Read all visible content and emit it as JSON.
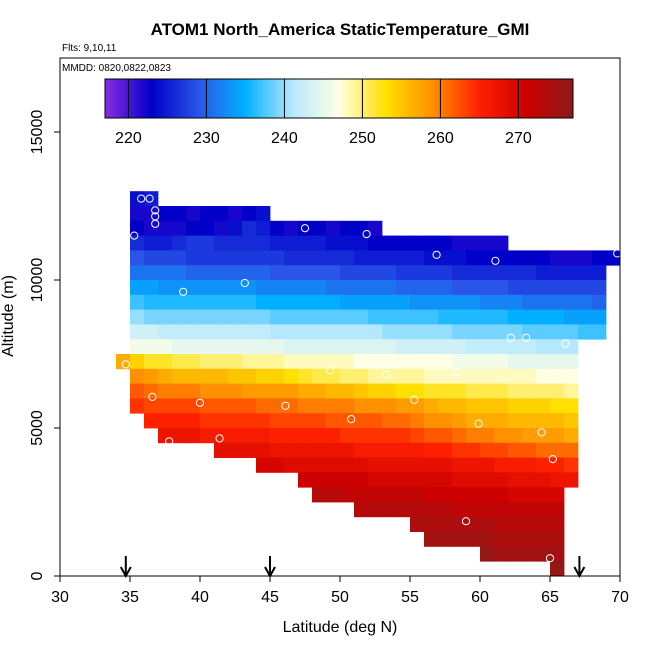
{
  "chart_data": {
    "type": "heatmap",
    "title": "ATOM1 North_America StaticTemperature_GMI",
    "subtitle_flights": "Flts: 9,10,11",
    "subtitle_dates": "MMDD: 0820,0822,0823",
    "xlabel": "Latitude (deg N)",
    "ylabel": "Altitude (m)",
    "xlim": [
      30,
      70
    ],
    "ylim": [
      0,
      17500
    ],
    "x_ticks": [
      30,
      35,
      40,
      45,
      50,
      55,
      60,
      65,
      70
    ],
    "y_ticks": [
      0,
      5000,
      10000,
      15000
    ],
    "colorbar": {
      "range": [
        217,
        277
      ],
      "ticks": [
        220,
        230,
        240,
        250,
        260,
        270
      ],
      "colors": [
        "#8a2be2",
        "#0000c8",
        "#2a55e8",
        "#00b0ff",
        "#b5e8ff",
        "#ffffe5",
        "#ffe000",
        "#ff9000",
        "#ff2000",
        "#cc0000",
        "#8b1a1a"
      ]
    },
    "cell_size": {
      "dlat": 1,
      "dalt": 500
    },
    "layers": [
      {
        "alt": 12750,
        "lat_start": 35,
        "lat_end": 37,
        "values": [
          224,
          225
        ]
      },
      {
        "alt": 12250,
        "lat_start": 35,
        "lat_end": 45,
        "values": [
          222,
          222,
          223,
          223,
          222,
          223,
          223,
          222,
          223,
          224
        ]
      },
      {
        "alt": 11750,
        "lat_start": 35,
        "lat_end": 53,
        "values": [
          223,
          222,
          222,
          222,
          223,
          223,
          222,
          224,
          226,
          225,
          223,
          222,
          223,
          223,
          222,
          223,
          223,
          222
        ]
      },
      {
        "alt": 11250,
        "lat_start": 35,
        "lat_end": 62,
        "values": [
          226,
          225,
          225,
          226,
          227,
          227,
          226,
          226,
          226,
          226,
          225,
          225,
          225,
          225,
          224,
          224,
          224,
          223,
          223,
          223,
          223,
          223,
          223,
          222,
          222,
          222,
          222
        ]
      },
      {
        "alt": 10750,
        "lat_start": 35,
        "lat_end": 70,
        "values": [
          229,
          228,
          228,
          228,
          227,
          227,
          227,
          227,
          227,
          227,
          227,
          226,
          226,
          226,
          226,
          226,
          225,
          225,
          225,
          225,
          225,
          224,
          224,
          224,
          223,
          223,
          223,
          223,
          223,
          223,
          222,
          222,
          222,
          223,
          223
        ]
      },
      {
        "alt": 10250,
        "lat_start": 35,
        "lat_end": 69,
        "values": [
          231,
          231,
          231,
          231,
          230,
          230,
          230,
          230,
          230,
          230,
          229,
          229,
          229,
          229,
          229,
          228,
          228,
          228,
          228,
          227,
          227,
          227,
          227,
          226,
          226,
          226,
          226,
          226,
          226,
          225,
          225,
          225,
          225,
          225
        ]
      },
      {
        "alt": 9750,
        "lat_start": 35,
        "lat_end": 69,
        "values": [
          234,
          234,
          233,
          233,
          233,
          233,
          233,
          233,
          233,
          232,
          232,
          232,
          232,
          232,
          231,
          231,
          231,
          231,
          231,
          230,
          230,
          230,
          230,
          229,
          229,
          229,
          229,
          228,
          228,
          228,
          228,
          228,
          228,
          228
        ]
      },
      {
        "alt": 9250,
        "lat_start": 35,
        "lat_end": 69,
        "values": [
          237,
          236,
          236,
          236,
          236,
          236,
          236,
          236,
          236,
          235,
          235,
          235,
          235,
          235,
          235,
          234,
          234,
          234,
          234,
          234,
          233,
          233,
          233,
          233,
          233,
          232,
          232,
          232,
          231,
          231,
          231,
          231,
          231,
          230
        ]
      },
      {
        "alt": 8750,
        "lat_start": 35,
        "lat_end": 69,
        "values": [
          240,
          239,
          239,
          239,
          239,
          239,
          239,
          239,
          239,
          239,
          238,
          238,
          238,
          238,
          238,
          238,
          238,
          237,
          237,
          237,
          237,
          237,
          236,
          236,
          236,
          236,
          236,
          235,
          235,
          235,
          235,
          234,
          234,
          234
        ]
      },
      {
        "alt": 8250,
        "lat_start": 35,
        "lat_end": 69,
        "values": [
          243,
          243,
          242,
          242,
          242,
          242,
          242,
          242,
          242,
          242,
          241,
          241,
          241,
          241,
          241,
          241,
          241,
          241,
          240,
          240,
          240,
          240,
          240,
          239,
          239,
          239,
          239,
          239,
          238,
          238,
          238,
          238,
          237,
          237
        ]
      },
      {
        "alt": 7750,
        "lat_start": 35,
        "lat_end": 67,
        "values": [
          246,
          246,
          246,
          245,
          245,
          245,
          245,
          245,
          245,
          245,
          245,
          244,
          244,
          244,
          244,
          244,
          244,
          244,
          244,
          243,
          243,
          243,
          243,
          243,
          242,
          242,
          242,
          242,
          242,
          241,
          241,
          241
        ]
      },
      {
        "alt": 7250,
        "lat_start": 34,
        "lat_end": 67,
        "values": [
          257,
          254,
          252,
          252,
          251,
          251,
          250,
          250,
          250,
          249,
          249,
          249,
          248,
          248,
          248,
          248,
          248,
          247,
          247,
          247,
          247,
          247,
          247,
          247,
          246,
          246,
          246,
          246,
          245,
          245,
          245,
          245,
          245
        ]
      },
      {
        "alt": 6750,
        "lat_start": 35,
        "lat_end": 67,
        "values": [
          259,
          258,
          257,
          256,
          256,
          256,
          256,
          255,
          255,
          254,
          254,
          253,
          252,
          251,
          251,
          250,
          250,
          249,
          249,
          249,
          249,
          248,
          248,
          248,
          248,
          248,
          248,
          248,
          248,
          247,
          247,
          247
        ]
      },
      {
        "alt": 6250,
        "lat_start": 35,
        "lat_end": 67,
        "values": [
          262,
          261,
          260,
          260,
          260,
          259,
          259,
          259,
          258,
          258,
          258,
          258,
          257,
          257,
          256,
          256,
          255,
          254,
          254,
          253,
          253,
          252,
          252,
          252,
          251,
          251,
          251,
          250,
          250,
          250,
          250,
          249
        ]
      },
      {
        "alt": 5750,
        "lat_start": 35,
        "lat_end": 67,
        "values": [
          264,
          263,
          263,
          263,
          263,
          262,
          262,
          262,
          262,
          261,
          261,
          261,
          260,
          260,
          260,
          260,
          259,
          259,
          259,
          258,
          258,
          257,
          256,
          256,
          255,
          255,
          255,
          254,
          254,
          254,
          253,
          253
        ]
      },
      {
        "alt": 5250,
        "lat_start": 36,
        "lat_end": 67,
        "values": [
          265,
          265,
          265,
          265,
          264,
          264,
          264,
          264,
          264,
          263,
          263,
          263,
          263,
          262,
          262,
          262,
          262,
          261,
          261,
          260,
          259,
          259,
          258,
          257,
          257,
          257,
          256,
          256,
          256,
          256,
          255
        ]
      },
      {
        "alt": 4750,
        "lat_start": 37,
        "lat_end": 67,
        "values": [
          267,
          267,
          267,
          266,
          266,
          266,
          266,
          266,
          265,
          265,
          265,
          265,
          265,
          264,
          264,
          264,
          264,
          264,
          263,
          262,
          262,
          261,
          260,
          260,
          259,
          259,
          258,
          258,
          258,
          257
        ]
      },
      {
        "alt": 4250,
        "lat_start": 41,
        "lat_end": 67,
        "values": [
          268,
          268,
          268,
          268,
          267,
          267,
          267,
          267,
          267,
          267,
          266,
          266,
          266,
          266,
          266,
          265,
          265,
          264,
          264,
          263,
          263,
          262,
          262,
          261,
          261,
          261
        ]
      },
      {
        "alt": 3750,
        "lat_start": 44,
        "lat_end": 67,
        "values": [
          270,
          270,
          269,
          269,
          269,
          269,
          269,
          269,
          268,
          268,
          268,
          268,
          268,
          268,
          267,
          267,
          267,
          266,
          266,
          266,
          265,
          265,
          264
        ]
      },
      {
        "alt": 3250,
        "lat_start": 47,
        "lat_end": 67,
        "values": [
          271,
          271,
          271,
          271,
          271,
          270,
          270,
          270,
          270,
          270,
          270,
          269,
          269,
          269,
          269,
          268,
          268,
          268,
          267,
          267
        ]
      },
      {
        "alt": 2750,
        "lat_start": 48,
        "lat_end": 66,
        "values": [
          273,
          273,
          272,
          272,
          272,
          272,
          272,
          272,
          271,
          271,
          271,
          271,
          271,
          271,
          270,
          270,
          270,
          270
        ]
      },
      {
        "alt": 2250,
        "lat_start": 51,
        "lat_end": 66,
        "values": [
          273,
          273,
          273,
          273,
          273,
          273,
          273,
          272,
          272,
          272,
          272,
          272,
          272,
          272,
          272
        ]
      },
      {
        "alt": 1750,
        "lat_start": 55,
        "lat_end": 66,
        "values": [
          274,
          274,
          274,
          274,
          274,
          274,
          273,
          273,
          273,
          273,
          273
        ]
      },
      {
        "alt": 1250,
        "lat_start": 56,
        "lat_end": 66,
        "values": [
          275,
          275,
          275,
          275,
          275,
          274,
          274,
          274,
          274,
          274
        ]
      },
      {
        "alt": 750,
        "lat_start": 60,
        "lat_end": 66,
        "values": [
          276,
          275,
          275,
          275,
          275,
          275
        ]
      },
      {
        "alt": 250,
        "lat_start": 65,
        "lat_end": 66,
        "values": [
          276
        ]
      }
    ],
    "sample_points": [
      [
        35.8,
        12750
      ],
      [
        36.4,
        12750
      ],
      [
        36.8,
        12350
      ],
      [
        36.8,
        12150
      ],
      [
        36.8,
        11900
      ],
      [
        35.3,
        11500
      ],
      [
        47.5,
        11750
      ],
      [
        51.9,
        11550
      ],
      [
        56.9,
        10850
      ],
      [
        61.1,
        10650
      ],
      [
        69.8,
        10900
      ],
      [
        38.8,
        9600
      ],
      [
        43.2,
        9900
      ],
      [
        62.2,
        8050
      ],
      [
        63.3,
        8050
      ],
      [
        66.1,
        7850
      ],
      [
        34.7,
        7150
      ],
      [
        49.3,
        6950
      ],
      [
        53.3,
        6800
      ],
      [
        58.3,
        6900
      ],
      [
        36.6,
        6050
      ],
      [
        40.0,
        5850
      ],
      [
        46.1,
        5750
      ],
      [
        55.3,
        5950
      ],
      [
        50.8,
        5300
      ],
      [
        59.9,
        5150
      ],
      [
        64.4,
        4850
      ],
      [
        37.8,
        4550
      ],
      [
        41.4,
        4650
      ],
      [
        65.2,
        3950
      ],
      [
        59.0,
        1850
      ],
      [
        65.0,
        600
      ]
    ],
    "flight_markers_lat": [
      34.7,
      45.0,
      67.1
    ]
  }
}
